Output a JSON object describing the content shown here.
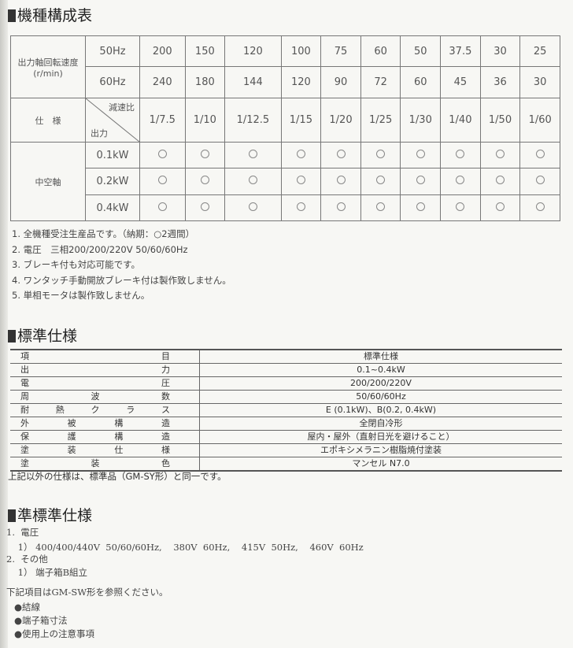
{
  "section1": {
    "title": "機種構成表",
    "speed_label": "出力軸回転速度",
    "speed_unit": "(r/min)",
    "hz50_label": "50Hz",
    "hz60_label": "60Hz",
    "speed_50": [
      "200",
      "150",
      "120",
      "100",
      "75",
      "60",
      "50",
      "37.5",
      "30",
      "25"
    ],
    "speed_60": [
      "240",
      "180",
      "144",
      "120",
      "90",
      "72",
      "60",
      "45",
      "36",
      "30"
    ],
    "spec_label": "仕　様",
    "ratio_label": "減速比",
    "output_label": "出力",
    "ratios": [
      "1/7.5",
      "1/10",
      "1/12.5",
      "1/15",
      "1/20",
      "1/25",
      "1/30",
      "1/40",
      "1/50",
      "1/60"
    ],
    "shaft_label": "中空軸",
    "outputs": [
      "0.1kW",
      "0.2kW",
      "0.4kW"
    ],
    "availability_mark": "○"
  },
  "notes": [
    "1. 全機種受注生産品です。（納期：○2週間）",
    "2. 電圧　三相200/200/220V 50/60/60Hz",
    "3. ブレーキ付も対応可能です。",
    "4. ワンタッチ手動開放ブレーキ付は製作致しません。",
    "5. 単相モータは製作致しません。"
  ],
  "section2": {
    "title": "標準仕様",
    "rows": [
      {
        "item": [
          "項",
          "目"
        ],
        "value": "標準仕様"
      },
      {
        "item": [
          "出",
          "力"
        ],
        "value": "0.1~0.4kW"
      },
      {
        "item": [
          "電",
          "圧"
        ],
        "value": "200/200/220V"
      },
      {
        "item": [
          "周",
          "波",
          "数"
        ],
        "value": "50/60/60Hz"
      },
      {
        "item": [
          "耐",
          "熱",
          "ク",
          "ラ",
          "ス"
        ],
        "value": "E (0.1kW)、B(0.2, 0.4kW)"
      },
      {
        "item": [
          "外",
          "被",
          "構",
          "造"
        ],
        "value": "全閉自冷形"
      },
      {
        "item": [
          "保",
          "護",
          "構",
          "造"
        ],
        "value": "屋内・屋外（直射日光を避けること）"
      },
      {
        "item": [
          "塗",
          "装",
          "仕",
          "様"
        ],
        "value": "エポキシメラニン樹脂焼付塗装"
      },
      {
        "item": [
          "塗",
          "装",
          "色"
        ],
        "value": "マンセル N7.0"
      }
    ],
    "note": "上記以外の仕様は、標準品（GM-SY形）と同一です。"
  },
  "section3": {
    "title": "準標準仕様",
    "lines": [
      "1.  電圧",
      "    1） 400/400/440V  50/60/60Hz,    380V  60Hz,    415V  50Hz,    460V  60Hz",
      "2.  その他",
      "    1） 端子箱B組立"
    ],
    "ref_note": "下記項目はGM-SW形を参照ください。",
    "ref_items": [
      "●結線",
      "●端子箱寸法",
      "●使用上の注意事項"
    ]
  }
}
